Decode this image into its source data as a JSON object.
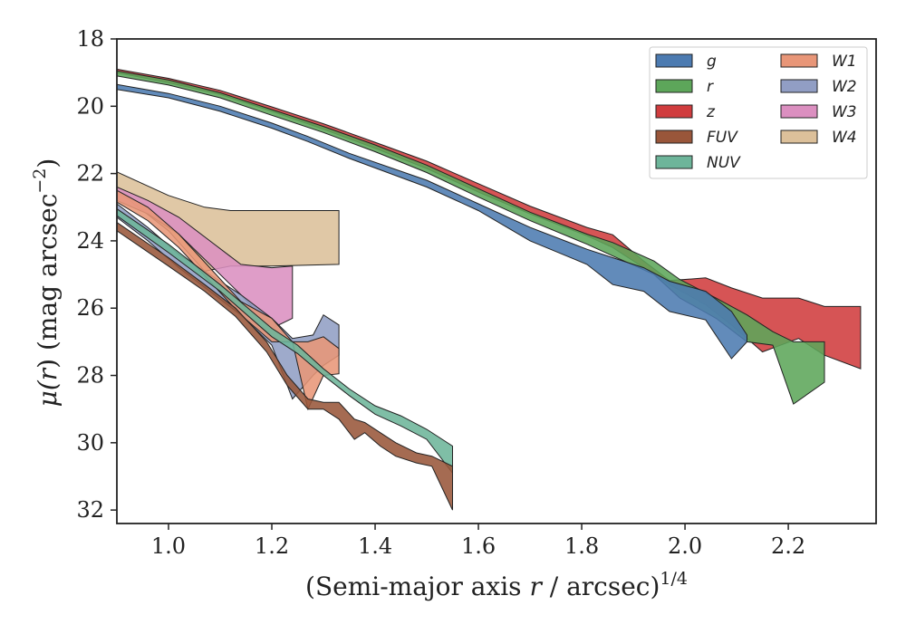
{
  "chart_data": {
    "type": "area",
    "title": "",
    "xlabel": "(Semi-major axis r / arcsec)^1/4",
    "ylabel": "μ(r) (mag arcsec^−2)",
    "xlabel_parts": {
      "main": "(Semi-major axis ",
      "var": "r",
      "rest": " / arcsec)",
      "sup": "1/4"
    },
    "ylabel_parts": {
      "mu": "μ(",
      "var": "r",
      "close": ")",
      "units": " (mag arcsec",
      "sup": "−2",
      "end": ")"
    },
    "xlim": [
      0.9,
      2.37
    ],
    "ylim": [
      32.4,
      18
    ],
    "y_inverted": true,
    "xticks": [
      "1.0",
      "1.2",
      "1.4",
      "1.6",
      "1.8",
      "2.0",
      "2.2"
    ],
    "yticks": [
      "18",
      "20",
      "22",
      "24",
      "26",
      "28",
      "30",
      "32"
    ],
    "grid": false,
    "legend_position": "top-right",
    "legend_columns": 2,
    "series": [
      {
        "name": "g",
        "color": "#4c7bb1",
        "x": [
          0.9,
          1.0,
          1.1,
          1.2,
          1.27,
          1.35,
          1.5,
          1.6,
          1.7,
          1.81,
          1.86,
          1.92,
          1.97,
          2.04,
          2.09,
          2.12
        ],
        "y_upper": [
          19.35,
          19.62,
          20.0,
          20.5,
          20.9,
          21.4,
          22.2,
          22.9,
          23.6,
          24.25,
          24.5,
          24.8,
          25.2,
          25.5,
          26.1,
          26.8
        ],
        "y_lower": [
          19.5,
          19.75,
          20.15,
          20.65,
          21.05,
          21.55,
          22.4,
          23.1,
          24.0,
          24.7,
          25.3,
          25.5,
          26.1,
          26.35,
          27.5,
          27.0
        ]
      },
      {
        "name": "r",
        "color": "#5da65a",
        "x": [
          0.9,
          1.0,
          1.1,
          1.2,
          1.3,
          1.4,
          1.5,
          1.6,
          1.7,
          1.81,
          1.86,
          1.94,
          1.99,
          2.06,
          2.12,
          2.17,
          2.21,
          2.27
        ],
        "y_upper": [
          18.95,
          19.22,
          19.6,
          20.1,
          20.6,
          21.15,
          21.75,
          22.45,
          23.15,
          23.8,
          24.05,
          24.6,
          25.15,
          25.7,
          26.2,
          26.7,
          27.0,
          27.0
        ],
        "y_lower": [
          19.1,
          19.37,
          19.75,
          20.27,
          20.78,
          21.35,
          21.97,
          22.7,
          23.4,
          24.1,
          24.45,
          25.0,
          25.7,
          26.3,
          27.0,
          27.1,
          28.85,
          28.2
        ]
      },
      {
        "name": "z",
        "color": "#d03c3e",
        "x": [
          0.9,
          1.0,
          1.1,
          1.2,
          1.3,
          1.4,
          1.5,
          1.6,
          1.7,
          1.81,
          1.86,
          1.92,
          1.97,
          2.04,
          2.09,
          2.15,
          2.22,
          2.27,
          2.34
        ],
        "y_upper": [
          18.9,
          19.17,
          19.53,
          20.02,
          20.52,
          21.07,
          21.63,
          22.3,
          22.97,
          23.6,
          23.82,
          24.6,
          25.18,
          25.1,
          25.4,
          25.7,
          25.7,
          25.95,
          25.95
        ],
        "y_lower": [
          19.0,
          19.3,
          19.65,
          20.15,
          20.68,
          21.25,
          21.85,
          22.55,
          23.2,
          23.85,
          24.2,
          24.8,
          25.3,
          25.9,
          26.5,
          27.3,
          26.9,
          27.4,
          27.8
        ]
      },
      {
        "name": "FUV",
        "color": "#99563a",
        "x": [
          0.9,
          1.0,
          1.07,
          1.13,
          1.19,
          1.23,
          1.27,
          1.3,
          1.33,
          1.36,
          1.38,
          1.41,
          1.44,
          1.48,
          1.51,
          1.55
        ],
        "y_upper": [
          23.45,
          24.5,
          25.3,
          26.0,
          27.0,
          28.0,
          28.7,
          28.8,
          28.8,
          29.3,
          29.4,
          29.7,
          30.0,
          30.3,
          30.4,
          30.7
        ],
        "y_lower": [
          23.7,
          24.75,
          25.5,
          26.25,
          27.3,
          28.3,
          29.0,
          29.0,
          29.3,
          29.9,
          29.7,
          30.1,
          30.4,
          30.6,
          30.7,
          32.0
        ]
      },
      {
        "name": "NUV",
        "color": "#6db59a",
        "x": [
          0.9,
          1.0,
          1.1,
          1.2,
          1.25,
          1.3,
          1.35,
          1.4,
          1.45,
          1.5,
          1.55
        ],
        "y_upper": [
          23.05,
          24.1,
          25.3,
          26.6,
          27.1,
          27.8,
          28.4,
          28.9,
          29.2,
          29.6,
          30.1
        ],
        "y_lower": [
          23.25,
          24.35,
          25.5,
          26.85,
          27.35,
          28.0,
          28.6,
          29.15,
          29.5,
          29.9,
          30.9
        ]
      },
      {
        "name": "W1",
        "color": "#e89678",
        "x": [
          0.9,
          0.96,
          1.02,
          1.08,
          1.14,
          1.2,
          1.24,
          1.27,
          1.3,
          1.33
        ],
        "y_upper": [
          22.5,
          23.0,
          23.8,
          24.8,
          25.8,
          26.3,
          27.0,
          27.0,
          26.85,
          27.2
        ],
        "y_lower": [
          22.85,
          23.4,
          24.2,
          25.2,
          26.2,
          27.0,
          27.0,
          29.0,
          28.0,
          27.95
        ]
      },
      {
        "name": "W2",
        "color": "#919ec4",
        "x": [
          0.9,
          0.96,
          1.02,
          1.08,
          1.14,
          1.2,
          1.24,
          1.28,
          1.3,
          1.33
        ],
        "y_upper": [
          22.9,
          23.6,
          24.4,
          25.0,
          25.6,
          26.3,
          26.9,
          26.8,
          26.2,
          26.5
        ],
        "y_lower": [
          23.3,
          24.0,
          24.8,
          25.5,
          26.2,
          27.1,
          28.7,
          28.0,
          27.7,
          27.4
        ]
      },
      {
        "name": "W3",
        "color": "#db8fc0",
        "x": [
          0.9,
          0.96,
          1.02,
          1.08,
          1.14,
          1.2,
          1.24
        ],
        "y_upper": [
          22.4,
          22.8,
          23.3,
          24.0,
          24.7,
          24.8,
          24.75
        ],
        "y_lower": [
          22.8,
          23.2,
          23.8,
          24.7,
          25.6,
          26.6,
          26.3
        ]
      },
      {
        "name": "W4",
        "color": "#dcc09a",
        "x": [
          0.9,
          1.0,
          1.07,
          1.12,
          1.2,
          1.33
        ],
        "y_upper": [
          21.95,
          22.65,
          23.0,
          23.1,
          23.1,
          23.1
        ],
        "y_lower": [
          22.5,
          23.7,
          24.9,
          24.75,
          24.75,
          24.7
        ]
      }
    ]
  }
}
